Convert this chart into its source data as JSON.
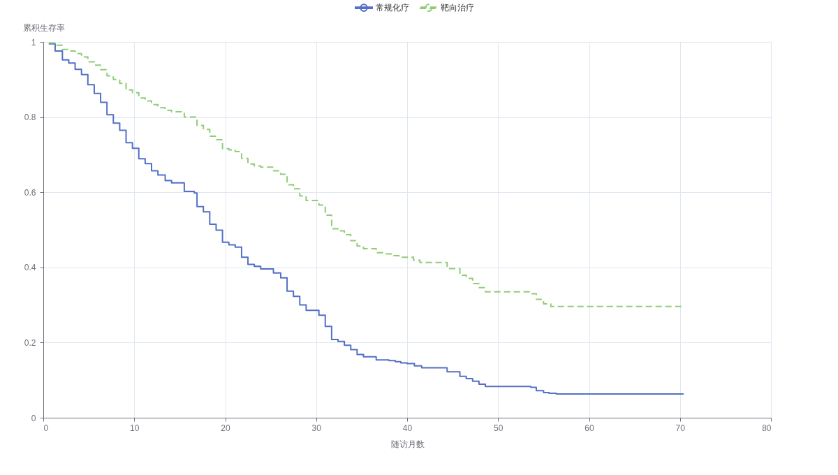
{
  "chart_data": {
    "type": "step",
    "xlabel": "随访月数",
    "ylabel": "累积生存率",
    "xlim": [
      0,
      80
    ],
    "ylim": [
      0,
      1
    ],
    "xticks": [
      0,
      10,
      20,
      30,
      40,
      50,
      60,
      70,
      80
    ],
    "yticks": [
      0,
      0.2,
      0.4,
      0.6,
      0.8,
      1
    ],
    "grid": true,
    "legend": "top",
    "series": [
      {
        "name": "常规化疗",
        "color": "#5470c6",
        "line_style": "solid",
        "x": [
          0.6,
          1.3,
          2.1,
          2.8,
          3.5,
          4.2,
          4.9,
          5.6,
          6.3,
          7.0,
          7.7,
          8.4,
          9.1,
          9.8,
          10.5,
          11.2,
          11.9,
          12.6,
          13.4,
          14.1,
          15.5,
          16.6,
          16.9,
          17.6,
          18.3,
          19.0,
          19.7,
          20.4,
          21.1,
          21.8,
          22.5,
          23.2,
          23.9,
          25.3,
          26.1,
          26.8,
          27.5,
          28.2,
          28.9,
          30.3,
          31.0,
          31.7,
          32.4,
          33.1,
          33.8,
          34.5,
          35.2,
          36.6,
          38.0,
          38.7,
          39.3,
          40.0,
          40.8,
          41.6,
          44.4,
          45.8,
          46.5,
          47.2,
          47.9,
          48.6,
          53.6,
          54.2,
          55.0,
          55.6,
          56.4,
          70.4
        ],
        "values": [
          0.995,
          0.976,
          0.952,
          0.944,
          0.927,
          0.913,
          0.886,
          0.863,
          0.839,
          0.806,
          0.784,
          0.765,
          0.732,
          0.717,
          0.689,
          0.676,
          0.657,
          0.646,
          0.631,
          0.625,
          0.602,
          0.598,
          0.562,
          0.548,
          0.515,
          0.499,
          0.467,
          0.46,
          0.454,
          0.427,
          0.408,
          0.403,
          0.396,
          0.385,
          0.372,
          0.337,
          0.323,
          0.3,
          0.286,
          0.273,
          0.243,
          0.208,
          0.203,
          0.193,
          0.181,
          0.168,
          0.162,
          0.154,
          0.152,
          0.149,
          0.146,
          0.144,
          0.138,
          0.133,
          0.122,
          0.11,
          0.104,
          0.097,
          0.089,
          0.083,
          0.081,
          0.072,
          0.067,
          0.065,
          0.063,
          0.063
        ]
      },
      {
        "name": "靶向治疗",
        "color": "#91cc75",
        "line_style": "dashed",
        "x": [
          0.6,
          1.3,
          2.1,
          2.8,
          3.5,
          4.2,
          4.9,
          5.6,
          6.3,
          7.0,
          7.7,
          8.4,
          9.1,
          9.8,
          10.5,
          11.2,
          11.9,
          12.6,
          13.4,
          14.1,
          15.5,
          16.9,
          17.6,
          18.3,
          19.0,
          19.7,
          20.4,
          21.1,
          21.8,
          22.5,
          23.2,
          23.9,
          25.3,
          26.1,
          26.8,
          27.5,
          28.2,
          28.9,
          30.3,
          31.0,
          31.7,
          32.4,
          33.1,
          33.8,
          34.5,
          35.2,
          36.6,
          37.7,
          38.4,
          39.1,
          40.7,
          41.4,
          44.4,
          45.8,
          46.5,
          47.2,
          47.9,
          48.6,
          53.6,
          54.2,
          55.0,
          55.8,
          70.4
        ],
        "values": [
          0.997,
          0.991,
          0.98,
          0.976,
          0.969,
          0.96,
          0.947,
          0.938,
          0.926,
          0.91,
          0.9,
          0.89,
          0.872,
          0.865,
          0.851,
          0.843,
          0.833,
          0.825,
          0.818,
          0.814,
          0.8,
          0.778,
          0.767,
          0.749,
          0.74,
          0.716,
          0.713,
          0.708,
          0.69,
          0.675,
          0.67,
          0.667,
          0.657,
          0.648,
          0.62,
          0.609,
          0.59,
          0.578,
          0.566,
          0.539,
          0.503,
          0.497,
          0.487,
          0.471,
          0.457,
          0.45,
          0.439,
          0.436,
          0.431,
          0.427,
          0.419,
          0.413,
          0.397,
          0.379,
          0.371,
          0.357,
          0.346,
          0.335,
          0.33,
          0.315,
          0.303,
          0.296,
          0.296
        ]
      }
    ]
  }
}
